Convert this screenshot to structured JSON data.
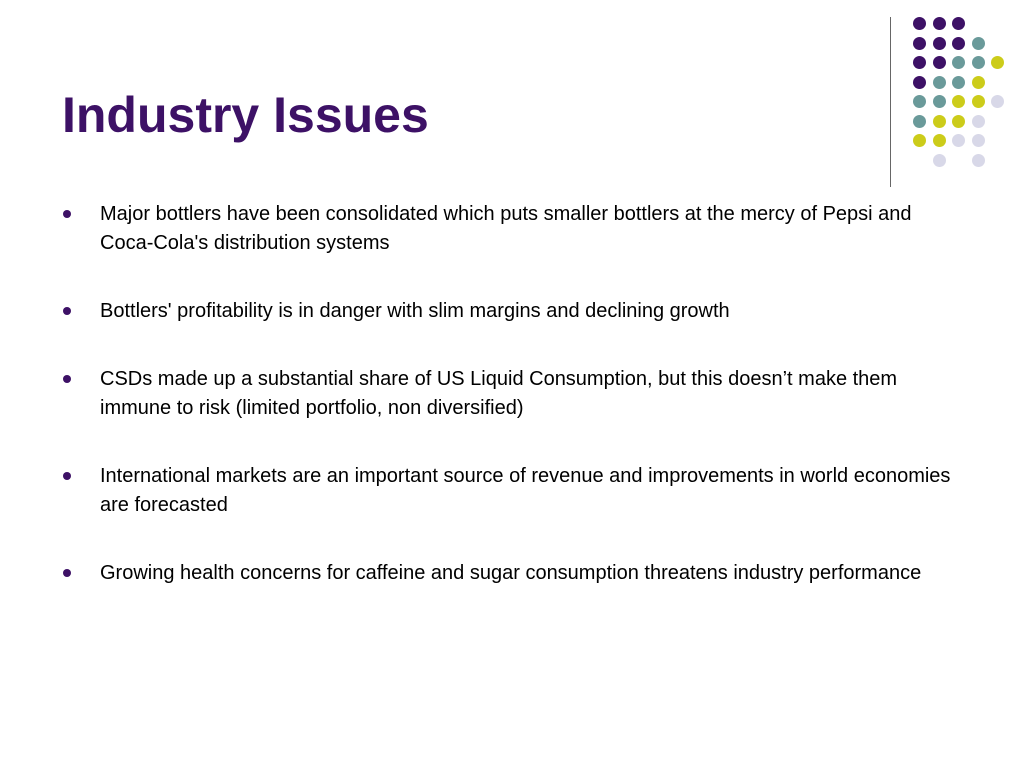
{
  "slide": {
    "title": "Industry Issues",
    "bullets": [
      "Major bottlers have been consolidated which puts smaller bottlers at the mercy of Pepsi and Coca-Cola's distribution systems",
      "Bottlers' profitability is in danger with slim margins and declining growth",
      "CSDs made up a substantial share of US Liquid Consumption, but this doesn’t make them immune to risk (limited portfolio, non diversified)",
      "International markets are an important source of revenue and improvements in world economies are forecasted",
      "Growing health concerns for caffeine and sugar consumption threatens industry performance"
    ]
  },
  "colors": {
    "title": "#3d1166",
    "bullet": "#3d1166",
    "dot_purple": "#3d1166",
    "dot_teal": "#6a9a9a",
    "dot_yellow": "#cccc1a",
    "dot_lavender": "#d8d8e8",
    "divider": "#666666"
  },
  "decoration": {
    "icon": "dot-grid-decoration",
    "dot_rows": [
      [
        "purple",
        "purple",
        "purple",
        null,
        null
      ],
      [
        "purple",
        "purple",
        "purple",
        "teal",
        null
      ],
      [
        "purple",
        "purple",
        "teal",
        "teal",
        "yellow"
      ],
      [
        "purple",
        "teal",
        "teal",
        "yellow",
        null
      ],
      [
        "teal",
        "teal",
        "yellow",
        "yellow",
        "lavender"
      ],
      [
        "teal",
        "yellow",
        "yellow",
        "lavender",
        null
      ],
      [
        "yellow",
        "yellow",
        "lavender",
        "lavender",
        null
      ],
      [
        null,
        "lavender",
        null,
        "lavender",
        null
      ]
    ]
  }
}
